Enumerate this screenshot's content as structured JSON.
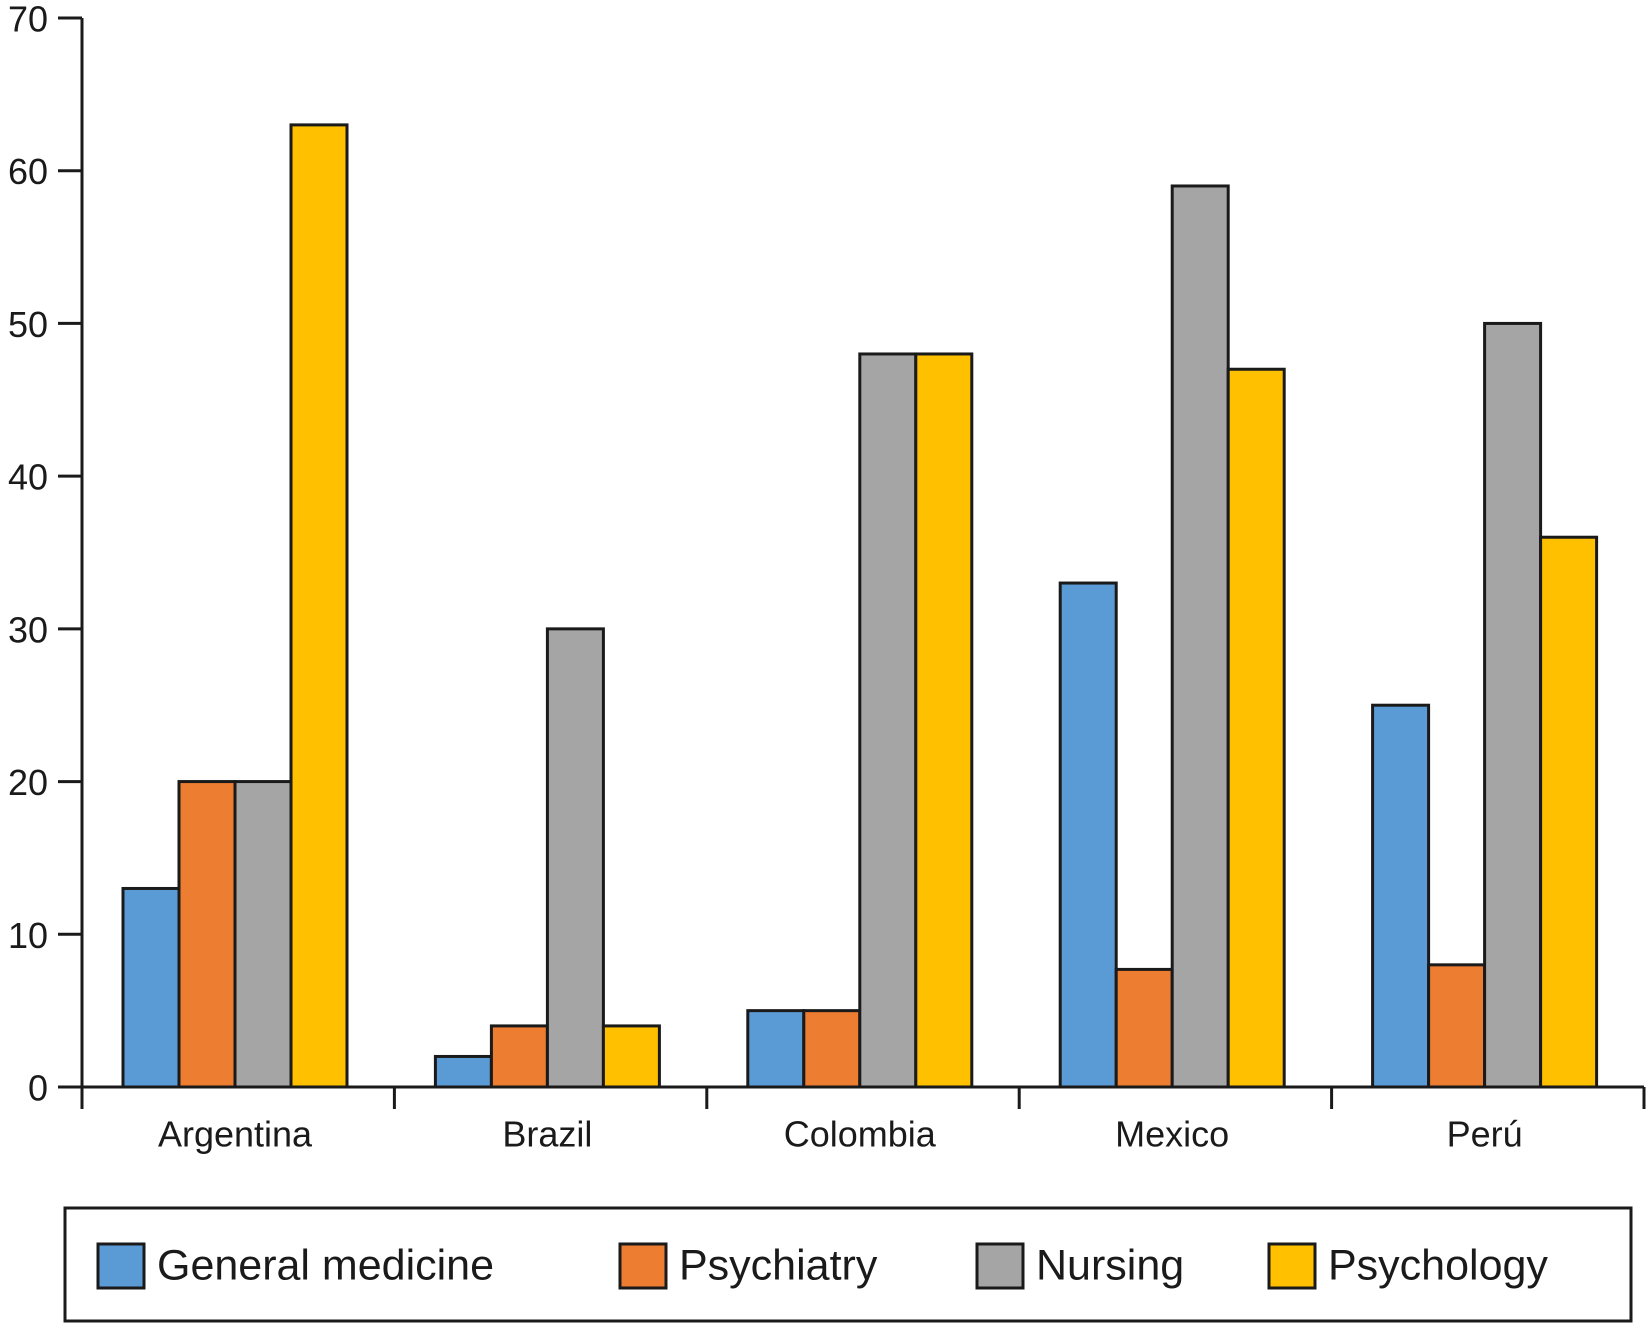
{
  "chart_data": {
    "type": "bar",
    "categories": [
      "Argentina",
      "Brazil",
      "Colombia",
      "Mexico",
      "Perú"
    ],
    "series": [
      {
        "name": "General medicine",
        "color": "#5b9bd5",
        "values": [
          13,
          2,
          5,
          33,
          25
        ]
      },
      {
        "name": "Psychiatry",
        "color": "#ed7d31",
        "values": [
          20,
          4,
          5,
          7.7,
          8
        ]
      },
      {
        "name": "Nursing",
        "color": "#a5a5a5",
        "values": [
          20,
          30,
          48,
          59,
          50
        ]
      },
      {
        "name": "Psychology",
        "color": "#ffc000",
        "values": [
          63,
          4,
          48,
          47,
          36
        ]
      }
    ],
    "ylim": [
      0,
      70
    ],
    "yticks": [
      0,
      10,
      20,
      30,
      40,
      50,
      60,
      70
    ],
    "grid": false,
    "legend": "bottom"
  }
}
